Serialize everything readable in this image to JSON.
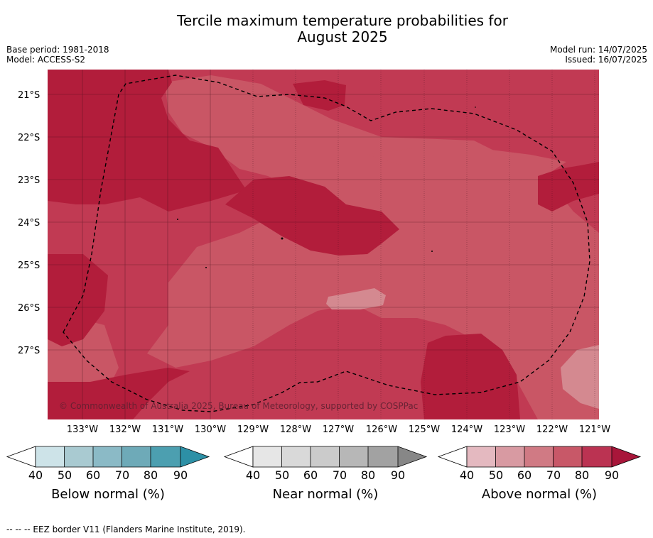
{
  "title_line1": "Tercile maximum temperature probabilities for",
  "title_line2": "August 2025",
  "meta_left": [
    "Base period: 1981-2018",
    "Model: ACCESS-S2"
  ],
  "meta_right": [
    "Model run: 14/07/2025",
    "Issued: 16/07/2025"
  ],
  "map": {
    "lat_labels": [
      "21°S",
      "22°S",
      "23°S",
      "24°S",
      "25°S",
      "26°S",
      "27°S"
    ],
    "lon_labels": [
      "133°W",
      "132°W",
      "131°W",
      "130°W",
      "129°W",
      "128°W",
      "127°W",
      "126°W",
      "125°W",
      "124°W",
      "123°W",
      "122°W",
      "121°W"
    ],
    "copyright": "© Commonwealth of Australia 2025, Bureau of Meteorology, supported by COSPPac",
    "colors": {
      "above_80_90": "#b21d3b",
      "above_70_80": "#c13a53",
      "above_60_70": "#c95665",
      "above_50_60": "#d48990"
    }
  },
  "legends": [
    {
      "title": "Below normal (%)",
      "ticks": [
        "40",
        "50",
        "60",
        "70",
        "80",
        "90"
      ],
      "colors": [
        "#cde3e8",
        "#a9cad1",
        "#8bbac6",
        "#6eaab8",
        "#4c9fb0",
        "#2d90a6"
      ]
    },
    {
      "title": "Near normal (%)",
      "ticks": [
        "40",
        "50",
        "60",
        "70",
        "80",
        "90"
      ],
      "colors": [
        "#e6e6e6",
        "#d9d9d9",
        "#cbcbcb",
        "#b7b7b7",
        "#a2a2a2",
        "#878787"
      ]
    },
    {
      "title": "Above normal (%)",
      "ticks": [
        "40",
        "50",
        "60",
        "70",
        "80",
        "90"
      ],
      "colors": [
        "#e4b9c0",
        "#d89aa2",
        "#d07a84",
        "#c85868",
        "#bb3352",
        "#a8163a"
      ]
    }
  ],
  "footer": "--  --  -- EEZ border V11 (Flanders Marine Institute, 2019)."
}
